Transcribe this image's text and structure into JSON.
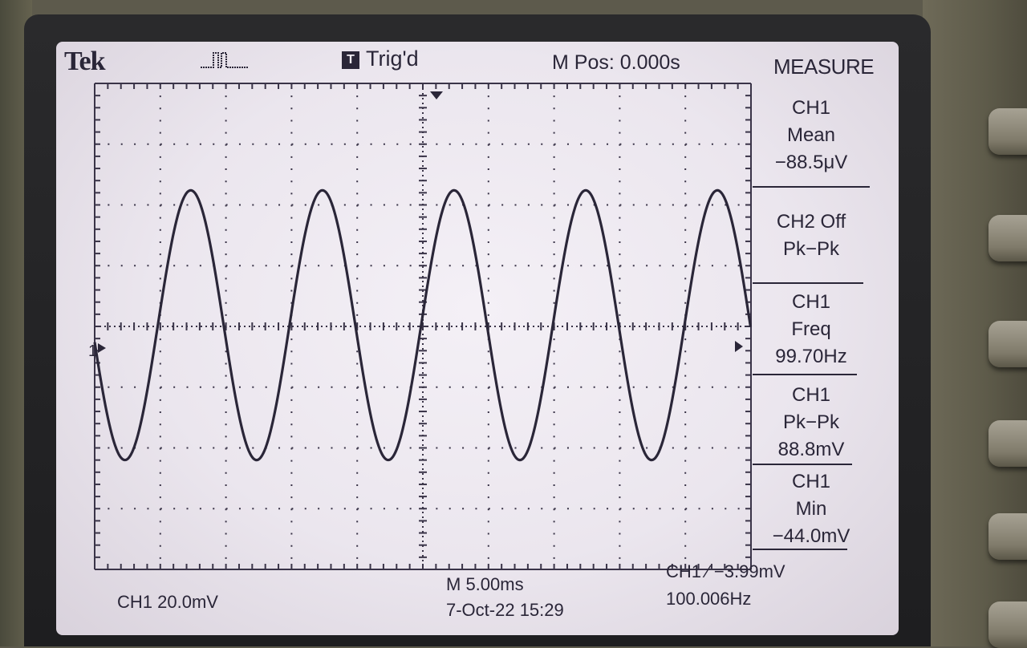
{
  "header": {
    "brand": "Tek",
    "trigger_badge": "T",
    "trigger_status": "Trig'd",
    "horizontal_position": "M Pos: 0.000s",
    "menu_title": "MEASURE"
  },
  "measurements": [
    {
      "source": "CH1",
      "type": "Mean",
      "value": "−88.5μV"
    },
    {
      "source": "CH2 Off",
      "type": "Pk−Pk",
      "value": ""
    },
    {
      "source": "CH1",
      "type": "Freq",
      "value": "99.70Hz"
    },
    {
      "source": "CH1",
      "type": "Pk−Pk",
      "value": "88.8mV"
    },
    {
      "source": "CH1",
      "type": "Min",
      "value": "−44.0mV"
    }
  ],
  "footer": {
    "ch1_scale": "CH1  20.0mV",
    "timebase": "M 5.00ms",
    "date_time": "7-Oct-22 15:29",
    "trigger_setting": "CH1 ∕ −3.99mV",
    "trigger_frequency": "100.006Hz"
  },
  "markers": {
    "ch1_ground": "1"
  },
  "waveform": {
    "channel": "CH1",
    "shape": "sine",
    "frequency_hz": 99.7,
    "peak_to_peak_mv": 88.8,
    "min_mv": -44.0,
    "volts_per_div_mv": 20.0,
    "time_per_div_ms": 5.0
  },
  "colors": {
    "screen_bg": "#ede8f0",
    "trace": "#2a2638"
  }
}
